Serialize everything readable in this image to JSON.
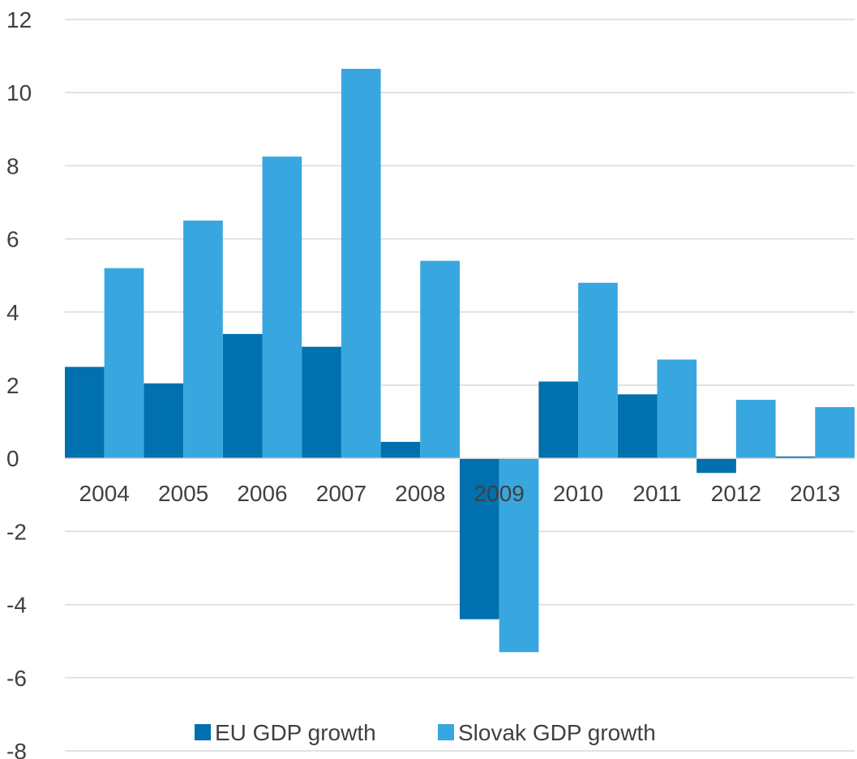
{
  "chart_data": {
    "type": "bar",
    "title": "",
    "xlabel": "",
    "ylabel": "",
    "categories": [
      "2004",
      "2005",
      "2006",
      "2007",
      "2008",
      "2009",
      "2010",
      "2011",
      "2012",
      "2013"
    ],
    "series": [
      {
        "name": "EU GDP growth",
        "color": "#0070AE",
        "values": [
          2.5,
          2.05,
          3.4,
          3.05,
          0.45,
          -4.4,
          2.1,
          1.75,
          -0.4,
          0.05
        ]
      },
      {
        "name": "Slovak GDP growth",
        "color": "#38A7DF",
        "values": [
          5.2,
          6.5,
          8.25,
          10.65,
          5.4,
          -5.3,
          4.8,
          2.7,
          1.6,
          1.4
        ]
      }
    ],
    "ylim": [
      -8,
      12
    ],
    "yticks": [
      12,
      10,
      8,
      6,
      4,
      2,
      0,
      -2,
      -4,
      -6,
      -8
    ],
    "grid": true,
    "legend_position": "bottom"
  }
}
